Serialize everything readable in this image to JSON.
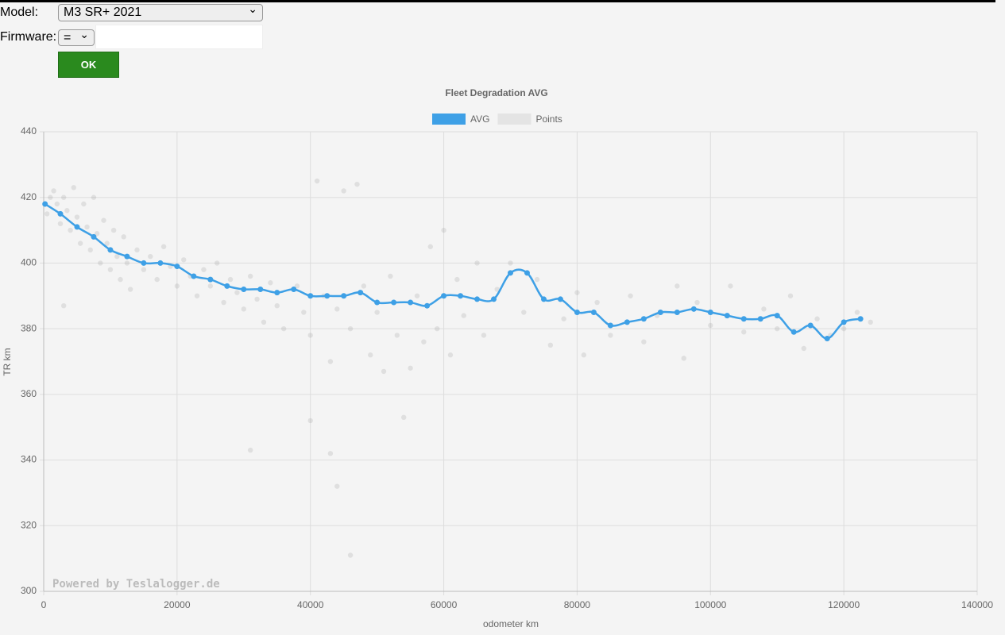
{
  "form": {
    "model_label": "Model:",
    "model_value": "M3 SR+ 2021",
    "firmware_label": "Firmware:",
    "firmware_op": "=",
    "button": "OK"
  },
  "chart_data": {
    "type": "line",
    "title": "Fleet Degradation AVG",
    "x_label": "odometer km",
    "y_label": "TR km",
    "watermark": "Powered by Teslalogger.de",
    "xlim": [
      0,
      140000
    ],
    "xticks": [
      0,
      20000,
      40000,
      60000,
      80000,
      100000,
      120000,
      140000
    ],
    "ylim": [
      300,
      440
    ],
    "yticks": [
      300,
      320,
      340,
      360,
      380,
      400,
      420,
      440
    ],
    "grid": true,
    "legend": "top",
    "series": [
      {
        "name": "AVG",
        "type": "line",
        "color": "#3ea0e6",
        "x": [
          200,
          2500,
          5000,
          7500,
          10000,
          12500,
          15000,
          17500,
          20000,
          22500,
          25000,
          27500,
          30000,
          32500,
          35000,
          37500,
          40000,
          42500,
          45000,
          47500,
          50000,
          52500,
          55000,
          57500,
          60000,
          62500,
          65000,
          67500,
          70000,
          72500,
          75000,
          77500,
          80000,
          82500,
          85000,
          87500,
          90000,
          92500,
          95000,
          97500,
          100000,
          102500,
          105000,
          107500,
          110000,
          112500,
          115000,
          117500,
          120000,
          122500
        ],
        "values": [
          418,
          415,
          411,
          408,
          404,
          402,
          400,
          400,
          399,
          396,
          395,
          393,
          392,
          392,
          391,
          392,
          390,
          390,
          390,
          391,
          388,
          388,
          388,
          387,
          390,
          390,
          389,
          389,
          397,
          397,
          389,
          389,
          385,
          385,
          381,
          382,
          383,
          385,
          385,
          386,
          385,
          384,
          383,
          383,
          384,
          379,
          381,
          377,
          382,
          383
        ]
      },
      {
        "name": "Points",
        "type": "scatter",
        "color": "rgba(120,120,120,0.16)",
        "legend_color": "#e4e4e4",
        "x": [
          500,
          1000,
          1500,
          2000,
          2500,
          3000,
          3500,
          4000,
          4500,
          5000,
          5500,
          6000,
          6500,
          7000,
          7500,
          8000,
          8500,
          9000,
          9500,
          10000,
          10500,
          11000,
          11500,
          12000,
          12500,
          13000,
          14000,
          15000,
          16000,
          17000,
          18000,
          19000,
          20000,
          21000,
          22000,
          23000,
          24000,
          25000,
          26000,
          27000,
          28000,
          29000,
          30000,
          31000,
          32000,
          33000,
          34000,
          35000,
          36000,
          38000,
          39000,
          40000,
          41000,
          42000,
          43000,
          44000,
          45000,
          46000,
          47000,
          48000,
          49000,
          50000,
          51000,
          52000,
          53000,
          55000,
          56000,
          57000,
          58000,
          59000,
          60000,
          61000,
          62000,
          63000,
          65000,
          66000,
          68000,
          70000,
          72000,
          74000,
          76000,
          78000,
          80000,
          81000,
          83000,
          85000,
          88000,
          90000,
          92000,
          95000,
          96000,
          98000,
          100000,
          103000,
          105000,
          108000,
          110000,
          112000,
          114000,
          116000,
          118000,
          120000,
          122000,
          124000,
          3000,
          31000,
          40000,
          43000,
          44000,
          46000,
          54000
        ],
        "values": [
          415,
          420,
          422,
          418,
          412,
          420,
          416,
          410,
          423,
          414,
          406,
          418,
          411,
          404,
          420,
          409,
          400,
          413,
          406,
          398,
          410,
          402,
          395,
          408,
          400,
          392,
          404,
          398,
          402,
          395,
          405,
          399,
          393,
          401,
          396,
          390,
          398,
          393,
          400,
          388,
          395,
          391,
          386,
          396,
          389,
          382,
          394,
          387,
          380,
          393,
          385,
          378,
          425,
          390,
          370,
          386,
          422,
          380,
          424,
          393,
          372,
          385,
          367,
          396,
          378,
          368,
          390,
          376,
          405,
          380,
          410,
          372,
          395,
          384,
          400,
          378,
          392,
          400,
          385,
          395,
          375,
          383,
          391,
          372,
          388,
          378,
          390,
          376,
          384,
          393,
          371,
          388,
          381,
          393,
          379,
          386,
          380,
          390,
          374,
          383,
          378,
          380,
          385,
          382,
          387,
          343,
          352,
          342,
          332,
          311,
          353
        ]
      }
    ]
  }
}
